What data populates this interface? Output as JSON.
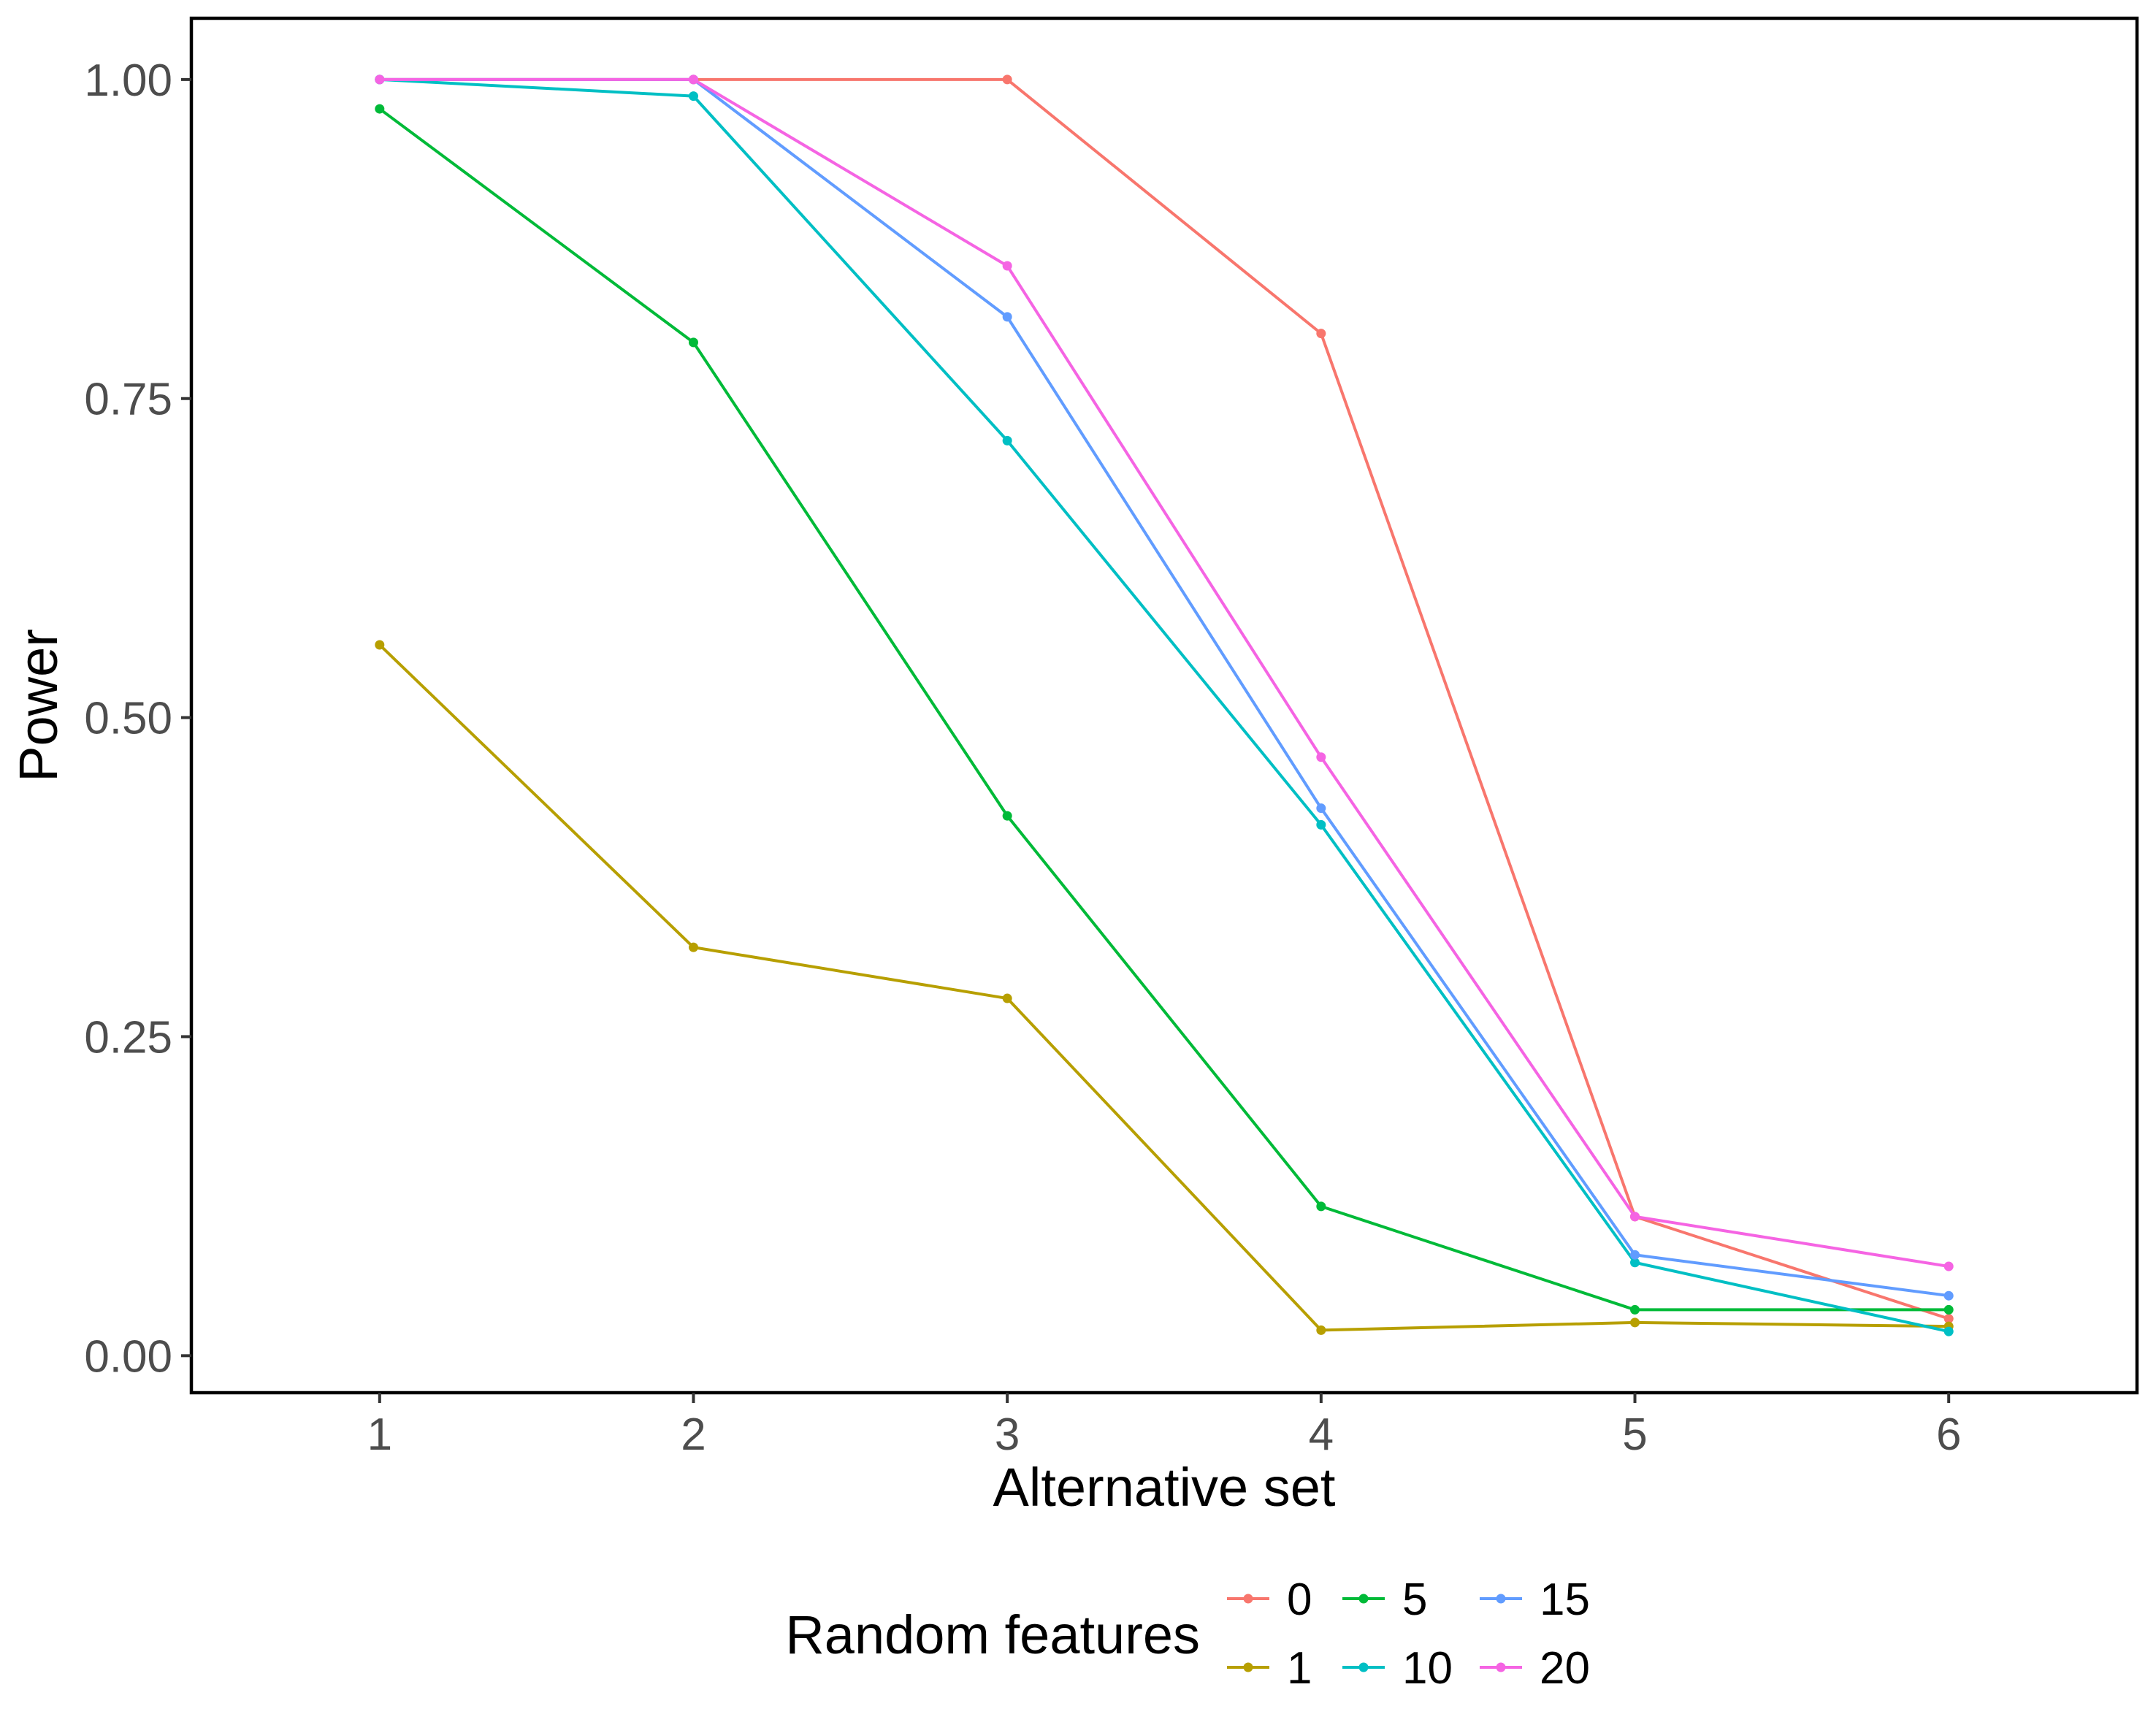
{
  "chart_data": {
    "type": "line",
    "title": "",
    "xlabel": "Alternative set",
    "ylabel": "Power",
    "x": [
      1,
      2,
      3,
      4,
      5,
      6
    ],
    "xlim": [
      0.4,
      6.6
    ],
    "ylim": [
      -0.029,
      1.048
    ],
    "x_ticks": [
      1,
      2,
      3,
      4,
      5,
      6
    ],
    "x_tick_labels": [
      "1",
      "2",
      "3",
      "4",
      "5",
      "6"
    ],
    "y_ticks": [
      0,
      0.25,
      0.5,
      0.75,
      1.0
    ],
    "y_tick_labels": [
      "0.00",
      "0.25",
      "0.50",
      "0.75",
      "1.00"
    ],
    "grid": false,
    "legend": {
      "title": "Random features",
      "position": "bottom"
    },
    "series": [
      {
        "name": "0",
        "color": "#F8766D",
        "values": [
          1.0,
          1.0,
          1.0,
          0.801,
          0.109,
          0.029
        ]
      },
      {
        "name": "1",
        "color": "#B79F00",
        "values": [
          0.557,
          0.32,
          0.28,
          0.02,
          0.026,
          0.023
        ]
      },
      {
        "name": "5",
        "color": "#00BA38",
        "values": [
          0.977,
          0.794,
          0.423,
          0.117,
          0.036,
          0.036
        ]
      },
      {
        "name": "10",
        "color": "#00BFC4",
        "values": [
          1.0,
          0.987,
          0.717,
          0.416,
          0.073,
          0.019
        ]
      },
      {
        "name": "15",
        "color": "#619CFF",
        "values": [
          1.0,
          1.0,
          0.814,
          0.429,
          0.079,
          0.047
        ]
      },
      {
        "name": "20",
        "color": "#F564E3",
        "values": [
          1.0,
          1.0,
          0.854,
          0.469,
          0.109,
          0.07
        ]
      }
    ]
  }
}
